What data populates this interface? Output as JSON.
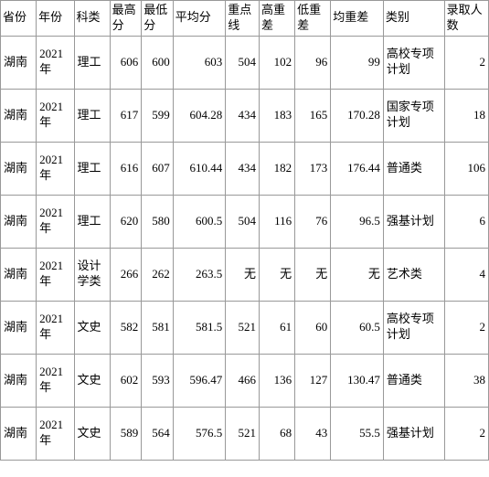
{
  "table": {
    "columns": [
      "省份",
      "年份",
      "科类",
      "最高分",
      "最低分",
      "平均分",
      "重点线",
      "高重差",
      "低重差",
      "均重差",
      "类别",
      "录取人数"
    ],
    "col_align": [
      "txt",
      "txt",
      "txt",
      "num",
      "num",
      "num",
      "num",
      "num",
      "num",
      "num",
      "txt",
      "num"
    ],
    "rows": [
      [
        "湖南",
        "2021年",
        "理工",
        "606",
        "600",
        "603",
        "504",
        "102",
        "96",
        "99",
        "高校专项计划",
        "2"
      ],
      [
        "湖南",
        "2021年",
        "理工",
        "617",
        "599",
        "604.28",
        "434",
        "183",
        "165",
        "170.28",
        "国家专项计划",
        "18"
      ],
      [
        "湖南",
        "2021年",
        "理工",
        "616",
        "607",
        "610.44",
        "434",
        "182",
        "173",
        "176.44",
        "普通类",
        "106"
      ],
      [
        "湖南",
        "2021年",
        "理工",
        "620",
        "580",
        "600.5",
        "504",
        "116",
        "76",
        "96.5",
        "强基计划",
        "6"
      ],
      [
        "湖南",
        "2021年",
        "设计学类",
        "266",
        "262",
        "263.5",
        "无",
        "无",
        "无",
        "无",
        "艺术类",
        "4"
      ],
      [
        "湖南",
        "2021年",
        "文史",
        "582",
        "581",
        "581.5",
        "521",
        "61",
        "60",
        "60.5",
        "高校专项计划",
        "2"
      ],
      [
        "湖南",
        "2021年",
        "文史",
        "602",
        "593",
        "596.47",
        "466",
        "136",
        "127",
        "130.47",
        "普通类",
        "38"
      ],
      [
        "湖南",
        "2021年",
        "文史",
        "589",
        "564",
        "576.5",
        "521",
        "68",
        "43",
        "55.5",
        "强基计划",
        "2"
      ]
    ],
    "border_color": "#999999",
    "background_color": "#ffffff",
    "text_color": "#000000",
    "font_size": 13
  }
}
